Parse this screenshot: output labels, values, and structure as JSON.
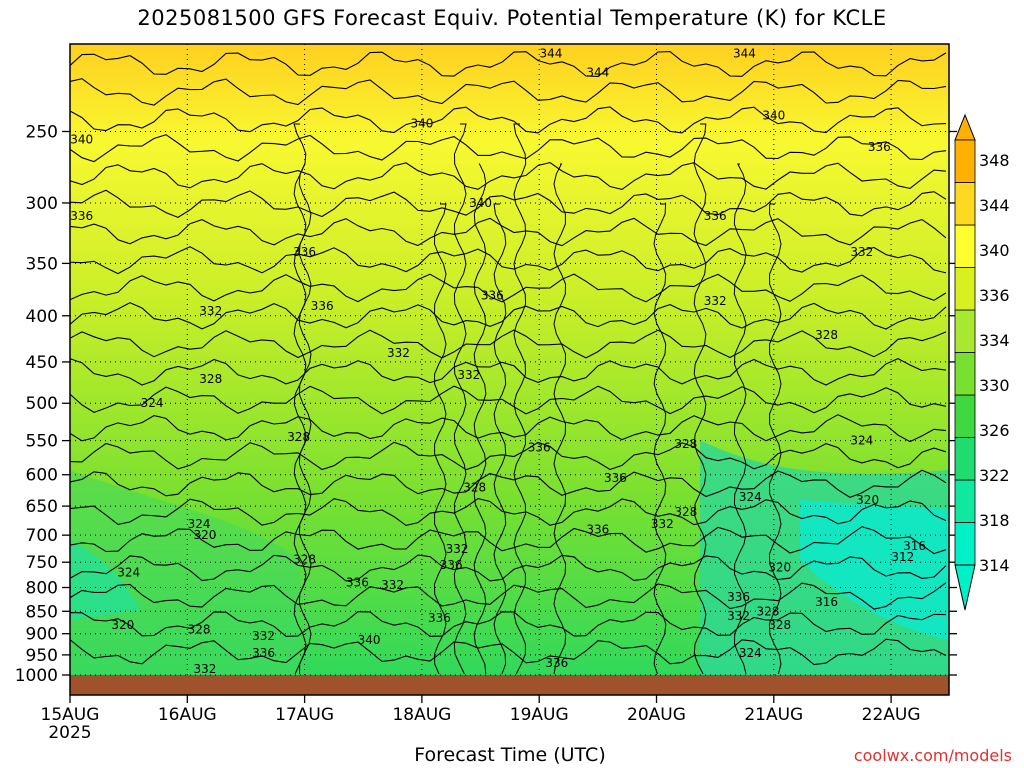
{
  "chart_data": {
    "type": "heatmap",
    "title": "2025081500 GFS Forecast Equiv. Potential Temperature (K) for KCLE",
    "xlabel": "Forecast Time (UTC)",
    "ylabel": "",
    "y_scale": "log-pressure",
    "y_reversed": true,
    "y_ticks": [
      250,
      300,
      350,
      400,
      450,
      500,
      550,
      600,
      650,
      700,
      750,
      800,
      850,
      900,
      950,
      1000
    ],
    "x_ticks": [
      "15AUG",
      "16AUG",
      "17AUG",
      "18AUG",
      "19AUG",
      "20AUG",
      "21AUG",
      "22AUG"
    ],
    "x_year_label": "2025",
    "colorbar": {
      "levels": [
        314,
        318,
        322,
        326,
        330,
        334,
        336,
        340,
        344,
        348
      ],
      "colors": [
        "#00f0c8",
        "#10e8a0",
        "#20dc70",
        "#40d840",
        "#78e030",
        "#a8e830",
        "#d8f020",
        "#ffff30",
        "#ffd820",
        "#ffb000"
      ]
    },
    "contour_labels": [
      {
        "value": "340",
        "x": 0.1,
        "y": 255
      },
      {
        "value": "336",
        "x": 0.1,
        "y": 310
      },
      {
        "value": "332",
        "x": 1.2,
        "y": 395
      },
      {
        "value": "328",
        "x": 1.2,
        "y": 470
      },
      {
        "value": "324",
        "x": 0.7,
        "y": 500
      },
      {
        "value": "324",
        "x": 1.1,
        "y": 680
      },
      {
        "value": "320",
        "x": 1.15,
        "y": 700
      },
      {
        "value": "324",
        "x": 0.5,
        "y": 770
      },
      {
        "value": "320",
        "x": 0.45,
        "y": 880
      },
      {
        "value": "328",
        "x": 1.1,
        "y": 890
      },
      {
        "value": "332",
        "x": 1.15,
        "y": 985
      },
      {
        "value": "332",
        "x": 1.65,
        "y": 905
      },
      {
        "value": "336",
        "x": 1.65,
        "y": 945
      },
      {
        "value": "336",
        "x": 2.0,
        "y": 340
      },
      {
        "value": "336",
        "x": 2.15,
        "y": 390
      },
      {
        "value": "340",
        "x": 3.0,
        "y": 245
      },
      {
        "value": "340",
        "x": 3.5,
        "y": 300
      },
      {
        "value": "344",
        "x": 4.1,
        "y": 205
      },
      {
        "value": "344",
        "x": 4.5,
        "y": 215
      },
      {
        "value": "336",
        "x": 3.6,
        "y": 380
      },
      {
        "value": "332",
        "x": 2.8,
        "y": 440
      },
      {
        "value": "332",
        "x": 3.4,
        "y": 465
      },
      {
        "value": "328",
        "x": 1.95,
        "y": 545
      },
      {
        "value": "328",
        "x": 3.45,
        "y": 620
      },
      {
        "value": "336",
        "x": 4.0,
        "y": 560
      },
      {
        "value": "336",
        "x": 4.65,
        "y": 605
      },
      {
        "value": "336",
        "x": 4.5,
        "y": 690
      },
      {
        "value": "332",
        "x": 5.05,
        "y": 680
      },
      {
        "value": "332",
        "x": 3.3,
        "y": 725
      },
      {
        "value": "336",
        "x": 3.25,
        "y": 755
      },
      {
        "value": "328",
        "x": 2.0,
        "y": 745
      },
      {
        "value": "336",
        "x": 2.45,
        "y": 790
      },
      {
        "value": "332",
        "x": 2.75,
        "y": 795
      },
      {
        "value": "336",
        "x": 3.15,
        "y": 865
      },
      {
        "value": "340",
        "x": 2.55,
        "y": 915
      },
      {
        "value": "336",
        "x": 4.15,
        "y": 970
      },
      {
        "value": "328",
        "x": 5.25,
        "y": 555
      },
      {
        "value": "328",
        "x": 5.25,
        "y": 660
      },
      {
        "value": "336",
        "x": 5.5,
        "y": 310
      },
      {
        "value": "332",
        "x": 5.5,
        "y": 385
      },
      {
        "value": "340",
        "x": 6.0,
        "y": 240
      },
      {
        "value": "344",
        "x": 5.75,
        "y": 205
      },
      {
        "value": "336",
        "x": 6.9,
        "y": 260
      },
      {
        "value": "332",
        "x": 6.75,
        "y": 340
      },
      {
        "value": "328",
        "x": 6.45,
        "y": 420
      },
      {
        "value": "324",
        "x": 6.75,
        "y": 550
      },
      {
        "value": "324",
        "x": 5.8,
        "y": 635
      },
      {
        "value": "320",
        "x": 6.8,
        "y": 640
      },
      {
        "value": "316",
        "x": 7.2,
        "y": 720
      },
      {
        "value": "312",
        "x": 7.1,
        "y": 740
      },
      {
        "value": "320",
        "x": 6.05,
        "y": 760
      },
      {
        "value": "336",
        "x": 5.7,
        "y": 820
      },
      {
        "value": "332",
        "x": 5.7,
        "y": 860
      },
      {
        "value": "328",
        "x": 5.95,
        "y": 850
      },
      {
        "value": "328",
        "x": 6.05,
        "y": 880
      },
      {
        "value": "316",
        "x": 6.45,
        "y": 830
      },
      {
        "value": "324",
        "x": 5.8,
        "y": 945
      }
    ]
  },
  "credit": "coolwx.com/models"
}
